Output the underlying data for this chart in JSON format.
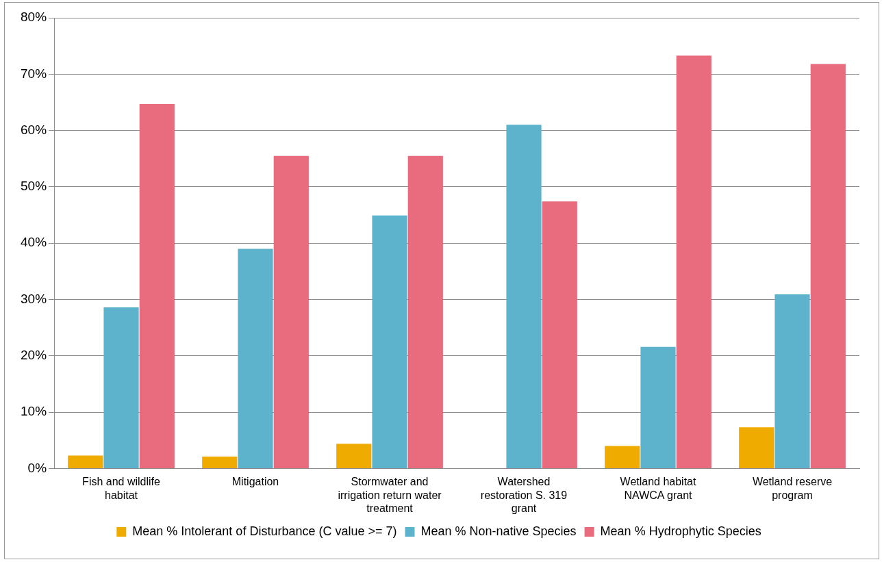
{
  "chart_data": {
    "type": "bar",
    "categories": [
      "Fish and wildlife habitat",
      "Mitigation",
      "Stormwater and irrigation return water treatment",
      "Watershed restoration S. 319 grant",
      "Wetland habitat NAWCA grant",
      "Wetland reserve program"
    ],
    "series": [
      {
        "name": "Mean % Intolerant of Disturbance (C value >= 7)",
        "color": "#f0ab00",
        "values": [
          2.3,
          2.1,
          4.4,
          0,
          4.0,
          7.3
        ]
      },
      {
        "name": "Mean % Non-native Species",
        "color": "#5eb3cc",
        "values": [
          28.6,
          39.0,
          44.9,
          61.0,
          21.6,
          30.9
        ]
      },
      {
        "name": "Mean % Hydrophytic Species",
        "color": "#e86c7e",
        "values": [
          64.7,
          55.5,
          55.5,
          47.4,
          73.3,
          71.8
        ]
      }
    ],
    "ylim": [
      0,
      80
    ],
    "yticks": [
      {
        "value": 0,
        "label": "0%"
      },
      {
        "value": 10,
        "label": "10%"
      },
      {
        "value": 20,
        "label": "20%"
      },
      {
        "value": 30,
        "label": "30%"
      },
      {
        "value": 40,
        "label": "40%"
      },
      {
        "value": 50,
        "label": "50%"
      },
      {
        "value": 60,
        "label": "60%"
      },
      {
        "value": 70,
        "label": "70%"
      },
      {
        "value": 80,
        "label": "80%"
      }
    ],
    "grid": "y",
    "legend": "bottom"
  }
}
